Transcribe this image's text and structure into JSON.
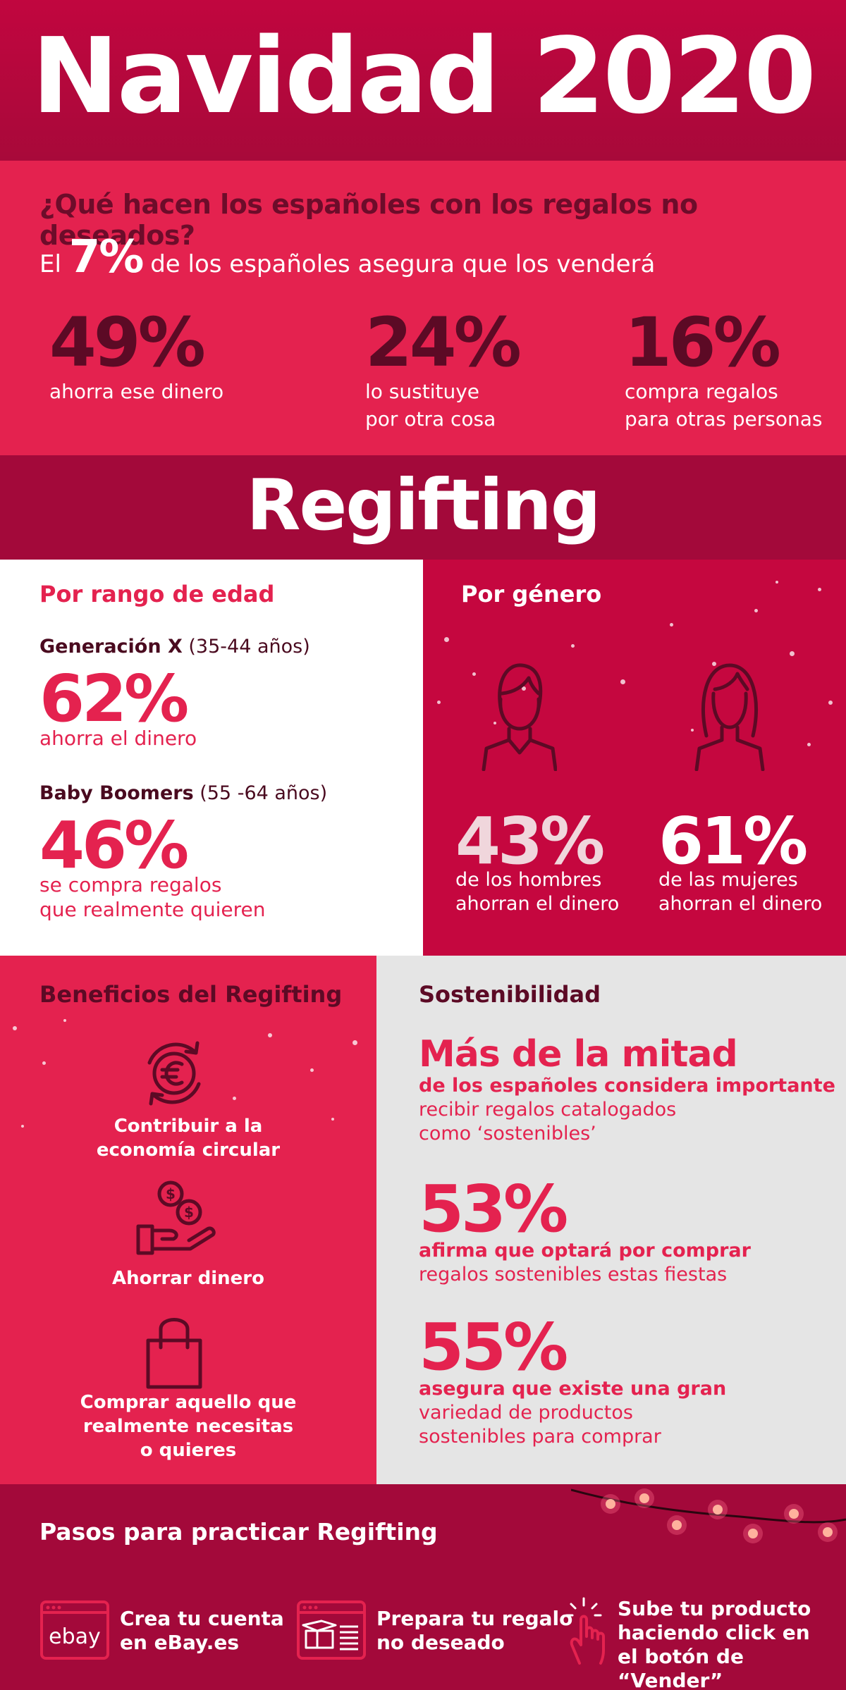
{
  "header": {
    "title": "Navidad 2020"
  },
  "survey": {
    "question": "¿Qué hacen los españoles con los regalos no deseados?",
    "intro_pre": "El",
    "intro_pct": "7%",
    "intro_post": "de los españoles asegura que los venderá",
    "stats": [
      {
        "value": "49%",
        "line1": "ahorra ese dinero",
        "line2": ""
      },
      {
        "value": "24%",
        "line1": "lo sustituye",
        "line2": "por otra cosa"
      },
      {
        "value": "16%",
        "line1": "compra regalos",
        "line2": "para otras personas"
      }
    ]
  },
  "regifting": {
    "title": "Regifting"
  },
  "age": {
    "title": "Por rango de edad",
    "groups": [
      {
        "name": "Generación X",
        "range": " (35-44 años)",
        "value": "62%",
        "line1": "ahorra el dinero",
        "line2": ""
      },
      {
        "name": "Baby Boomers",
        "range": " (55 -64 años)",
        "value": "46%",
        "line1": "se compra regalos",
        "line2": "que realmente quieren"
      }
    ]
  },
  "gender": {
    "title": "Por género",
    "men": {
      "value": "43%",
      "line1": "de los hombres",
      "line2": "ahorran el dinero"
    },
    "women": {
      "value": "61%",
      "line1": "de las mujeres",
      "line2": "ahorran el dinero"
    }
  },
  "benefits": {
    "title": "Beneficios del Regifting",
    "items": [
      {
        "icon": "euro-circular-icon",
        "line1": "Contribuir a la",
        "line2": "economía circular",
        "line3": ""
      },
      {
        "icon": "hand-coins-icon",
        "line1": "Ahorrar dinero",
        "line2": "",
        "line3": ""
      },
      {
        "icon": "shopping-bag-icon",
        "line1": "Comprar aquello que",
        "line2": "realmente necesitas",
        "line3": "o quieres"
      }
    ]
  },
  "sustainability": {
    "title": "Sostenibilidad",
    "headline": "Más de la mitad",
    "headline_bold": "de los españoles considera importante",
    "headline_line1": "recibir regalos catalogados",
    "headline_line2": "como ‘sostenibles’",
    "stats": [
      {
        "value": "53%",
        "bold": "afirma que optará por comprar",
        "line1": "regalos sostenibles estas fiestas",
        "line2": ""
      },
      {
        "value": "55%",
        "bold": "asegura que existe una gran",
        "line1": "variedad de productos",
        "line2": "sostenibles para comprar"
      }
    ]
  },
  "steps": {
    "title": "Pasos para practicar Regifting",
    "items": [
      {
        "icon": "ebay-window-icon",
        "logo_text": "ebay",
        "line1": "Crea tu cuenta",
        "line2": "en eBay.es",
        "line3": ""
      },
      {
        "icon": "package-window-icon",
        "line1": "Prepara tu regalo",
        "line2": "no deseado",
        "line3": ""
      },
      {
        "icon": "hand-click-icon",
        "line1": "Sube tu producto",
        "line2": "haciendo click en",
        "line3": "el botón de “Vender”"
      }
    ]
  },
  "colors": {
    "red": "#e4224f",
    "crimson": "#c5073f",
    "dark": "#a3093a",
    "maroon": "#5c0a25",
    "grey": "#e5e5e5"
  }
}
